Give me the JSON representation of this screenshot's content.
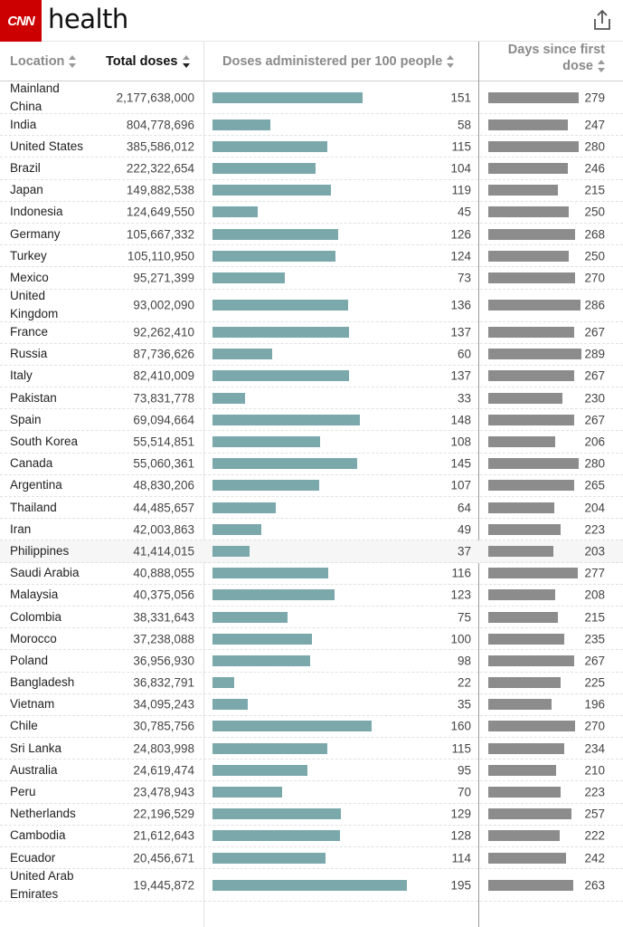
{
  "app": {
    "logo_text": "CNN",
    "section_title": "health"
  },
  "header": {
    "location": "Location",
    "total_doses": "Total doses",
    "per100": "Doses administered per 100 people",
    "days_line1": "Days since first",
    "days_line2": "dose"
  },
  "colors": {
    "per100_bar": "#7ba8ab",
    "days_bar": "#8c8c8c",
    "brand": "#cc0000"
  },
  "rows": [
    {
      "location": "Mainland China",
      "doses": "2,177,638,000",
      "per100": 151,
      "days": 279
    },
    {
      "location": "India",
      "doses": "804,778,696",
      "per100": 58,
      "days": 247
    },
    {
      "location": "United States",
      "doses": "385,586,012",
      "per100": 115,
      "days": 280
    },
    {
      "location": "Brazil",
      "doses": "222,322,654",
      "per100": 104,
      "days": 246
    },
    {
      "location": "Japan",
      "doses": "149,882,538",
      "per100": 119,
      "days": 215
    },
    {
      "location": "Indonesia",
      "doses": "124,649,550",
      "per100": 45,
      "days": 250
    },
    {
      "location": "Germany",
      "doses": "105,667,332",
      "per100": 126,
      "days": 268
    },
    {
      "location": "Turkey",
      "doses": "105,110,950",
      "per100": 124,
      "days": 250
    },
    {
      "location": "Mexico",
      "doses": "95,271,399",
      "per100": 73,
      "days": 270
    },
    {
      "location": "United Kingdom",
      "doses": "93,002,090",
      "per100": 136,
      "days": 286
    },
    {
      "location": "France",
      "doses": "92,262,410",
      "per100": 137,
      "days": 267
    },
    {
      "location": "Russia",
      "doses": "87,736,626",
      "per100": 60,
      "days": 289
    },
    {
      "location": "Italy",
      "doses": "82,410,009",
      "per100": 137,
      "days": 267
    },
    {
      "location": "Pakistan",
      "doses": "73,831,778",
      "per100": 33,
      "days": 230
    },
    {
      "location": "Spain",
      "doses": "69,094,664",
      "per100": 148,
      "days": 267
    },
    {
      "location": "South Korea",
      "doses": "55,514,851",
      "per100": 108,
      "days": 206
    },
    {
      "location": "Canada",
      "doses": "55,060,361",
      "per100": 145,
      "days": 280
    },
    {
      "location": "Argentina",
      "doses": "48,830,206",
      "per100": 107,
      "days": 265
    },
    {
      "location": "Thailand",
      "doses": "44,485,657",
      "per100": 64,
      "days": 204
    },
    {
      "location": "Iran",
      "doses": "42,003,863",
      "per100": 49,
      "days": 223
    },
    {
      "location": "Philippines",
      "doses": "41,414,015",
      "per100": 37,
      "days": 203
    },
    {
      "location": "Saudi Arabia",
      "doses": "40,888,055",
      "per100": 116,
      "days": 277
    },
    {
      "location": "Malaysia",
      "doses": "40,375,056",
      "per100": 123,
      "days": 208
    },
    {
      "location": "Colombia",
      "doses": "38,331,643",
      "per100": 75,
      "days": 215
    },
    {
      "location": "Morocco",
      "doses": "37,238,088",
      "per100": 100,
      "days": 235
    },
    {
      "location": "Poland",
      "doses": "36,956,930",
      "per100": 98,
      "days": 267
    },
    {
      "location": "Bangladesh",
      "doses": "36,832,791",
      "per100": 22,
      "days": 225
    },
    {
      "location": "Vietnam",
      "doses": "34,095,243",
      "per100": 35,
      "days": 196
    },
    {
      "location": "Chile",
      "doses": "30,785,756",
      "per100": 160,
      "days": 270
    },
    {
      "location": "Sri Lanka",
      "doses": "24,803,998",
      "per100": 115,
      "days": 234
    },
    {
      "location": "Australia",
      "doses": "24,619,474",
      "per100": 95,
      "days": 210
    },
    {
      "location": "Peru",
      "doses": "23,478,943",
      "per100": 70,
      "days": 223
    },
    {
      "location": "Netherlands",
      "doses": "22,196,529",
      "per100": 129,
      "days": 257
    },
    {
      "location": "Cambodia",
      "doses": "21,612,643",
      "per100": 128,
      "days": 222
    },
    {
      "location": "Ecuador",
      "doses": "20,456,671",
      "per100": 114,
      "days": 242
    },
    {
      "location": "United Arab Emirates",
      "doses": "19,445,872",
      "per100": 195,
      "days": 263
    }
  ]
}
